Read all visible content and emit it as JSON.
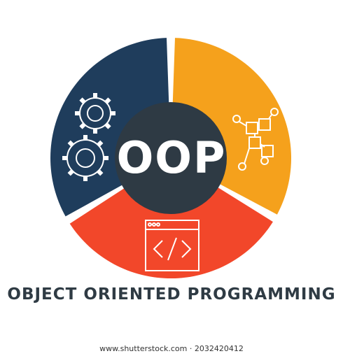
{
  "diagram": {
    "center_text": "OOP",
    "caption": "OBJECT ORIENTED PROGRAMMING",
    "credit": "www.shutterstock.com · 2032420412",
    "segments": [
      {
        "name": "gears",
        "icon": "gears-icon",
        "color": "#1f3d5c"
      },
      {
        "name": "flowchart",
        "icon": "flowchart-icon",
        "color": "#f5a11c"
      },
      {
        "name": "code-window",
        "icon": "code-window-icon",
        "color": "#f2472a"
      }
    ],
    "center_color": "#2e3a44",
    "code_glyph": "</>"
  }
}
